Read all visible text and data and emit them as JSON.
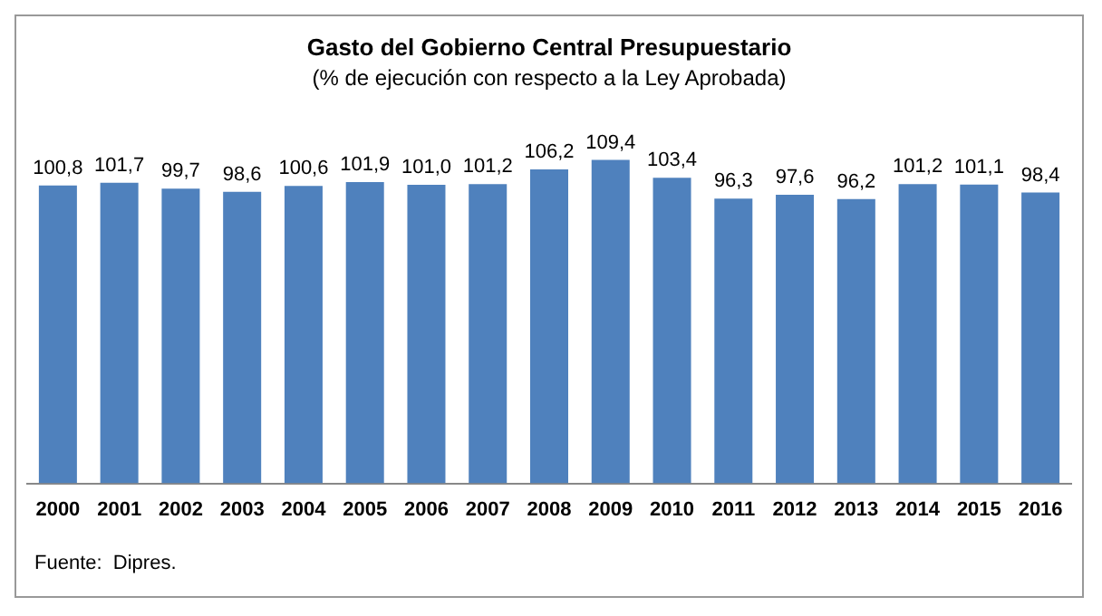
{
  "chart_data": {
    "type": "bar",
    "title": "Gasto del Gobierno Central Presupuestario",
    "subtitle": "(% de ejecución con respecto a la Ley Aprobada)",
    "categories": [
      "2000",
      "2001",
      "2002",
      "2003",
      "2004",
      "2005",
      "2006",
      "2007",
      "2008",
      "2009",
      "2010",
      "2011",
      "2012",
      "2013",
      "2014",
      "2015",
      "2016"
    ],
    "values": [
      100.8,
      101.7,
      99.7,
      98.6,
      100.6,
      101.9,
      101.0,
      101.2,
      106.2,
      109.4,
      103.4,
      96.3,
      97.6,
      96.2,
      101.2,
      101.1,
      98.4
    ],
    "value_labels": [
      "100,8",
      "101,7",
      "99,7",
      "98,6",
      "100,6",
      "101,9",
      "101,0",
      "101,2",
      "106,2",
      "109,4",
      "103,4",
      "96,3",
      "97,6",
      "96,2",
      "101,2",
      "101,1",
      "98,4"
    ],
    "color": "#4f81bd",
    "grid": false,
    "legend": false,
    "annotations": [
      "Fuente:  Dipres."
    ]
  }
}
